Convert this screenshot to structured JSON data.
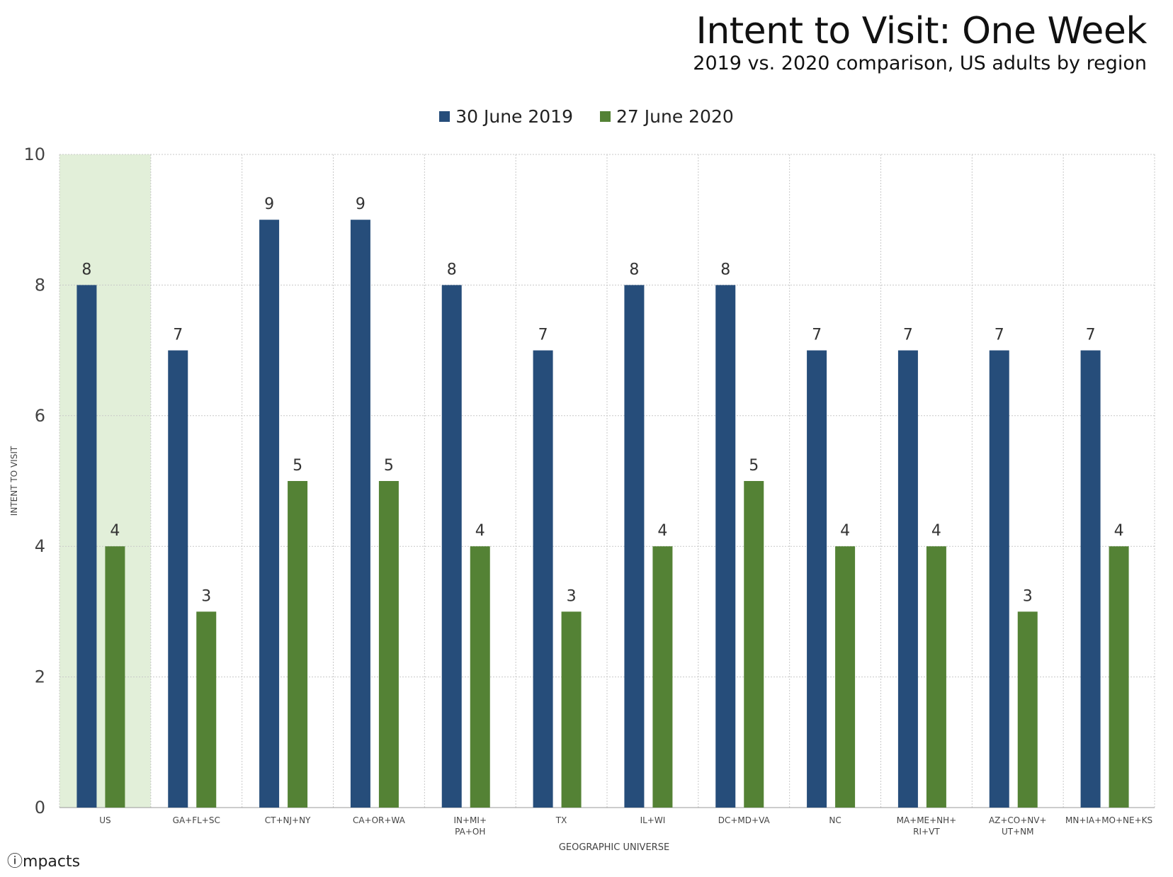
{
  "chart_data": {
    "type": "bar",
    "title": "Intent to Visit: One Week",
    "subtitle": "2019 vs. 2020 comparison, US adults by region",
    "xlabel": "GEOGRAPHIC UNIVERSE",
    "ylabel": "INTENT TO VISIT",
    "ylim": [
      0,
      10
    ],
    "yticks": [
      0,
      2,
      4,
      6,
      8,
      10
    ],
    "grid": true,
    "legend_position": "top-center",
    "highlight_category_index": 0,
    "highlight_color": "#e2efd9",
    "categories": [
      [
        "US"
      ],
      [
        "GA+FL+SC"
      ],
      [
        "CT+NJ+NY"
      ],
      [
        "CA+OR+WA"
      ],
      [
        "IN+MI+",
        "PA+OH"
      ],
      [
        "TX"
      ],
      [
        "IL+WI"
      ],
      [
        "DC+MD+VA"
      ],
      [
        "NC"
      ],
      [
        "MA+ME+NH+",
        "RI+VT"
      ],
      [
        "AZ+CO+NV+",
        "UT+NM"
      ],
      [
        "MN+IA+MO+NE+KS"
      ]
    ],
    "series": [
      {
        "name": "30 June 2019",
        "color": "#264d7a",
        "values": [
          8,
          7,
          9,
          9,
          8,
          7,
          8,
          8,
          7,
          7,
          7,
          7
        ]
      },
      {
        "name": "27 June 2020",
        "color": "#548235",
        "values": [
          4,
          3,
          5,
          5,
          4,
          3,
          4,
          5,
          4,
          4,
          3,
          4
        ]
      }
    ]
  },
  "brand": {
    "icon": "i-circle-icon",
    "text": "mpacts"
  }
}
